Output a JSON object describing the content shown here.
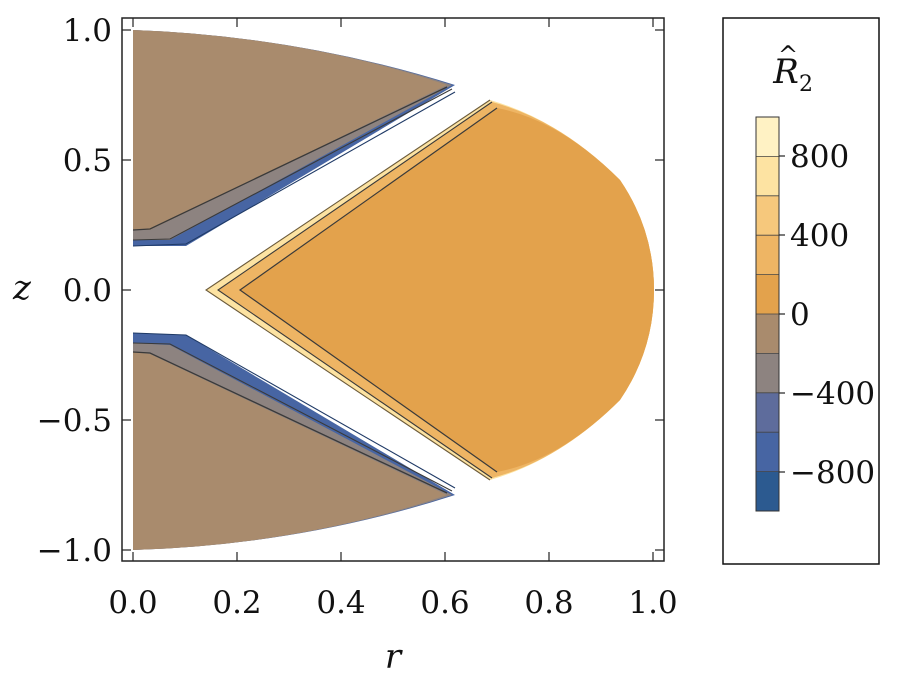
{
  "chart_data": {
    "type": "contour",
    "xlabel": "r",
    "ylabel": "z",
    "xlim": [
      0.0,
      1.0
    ],
    "ylim": [
      -1.0,
      1.0
    ],
    "x_ticks": [
      "0.0",
      "0.2",
      "0.4",
      "0.6",
      "0.8",
      "1.0"
    ],
    "y_ticks": [
      "1.0",
      "0.5",
      "0.0",
      "−0.5",
      "−1.0"
    ],
    "regions": [
      {
        "name": "upper-wedge",
        "sign": "negative",
        "color": "#a98b6d"
      },
      {
        "name": "lower-wedge",
        "sign": "negative",
        "color": "#a98b6d"
      },
      {
        "name": "right-bulge",
        "sign": "positive",
        "color": "#e3a24c"
      }
    ],
    "legend": {
      "title_main": "R",
      "title_sub": "2",
      "tick_labels": [
        "800",
        "400",
        "0",
        "−400",
        "−800"
      ],
      "range": [
        -1000,
        1000
      ],
      "levels": [
        {
          "from": 800,
          "to": 1000,
          "color": "#fff2c4"
        },
        {
          "from": 600,
          "to": 800,
          "color": "#fde3a2"
        },
        {
          "from": 400,
          "to": 600,
          "color": "#f6c87c"
        },
        {
          "from": 200,
          "to": 400,
          "color": "#eeb564"
        },
        {
          "from": 0,
          "to": 200,
          "color": "#e3a24c"
        },
        {
          "from": -200,
          "to": 0,
          "color": "#a98b6d"
        },
        {
          "from": -400,
          "to": -200,
          "color": "#8d8380"
        },
        {
          "from": -600,
          "to": -400,
          "color": "#5e6c9c"
        },
        {
          "from": -800,
          "to": -600,
          "color": "#4765a3"
        },
        {
          "from": -1000,
          "to": -800,
          "color": "#2c5a90"
        }
      ]
    }
  }
}
